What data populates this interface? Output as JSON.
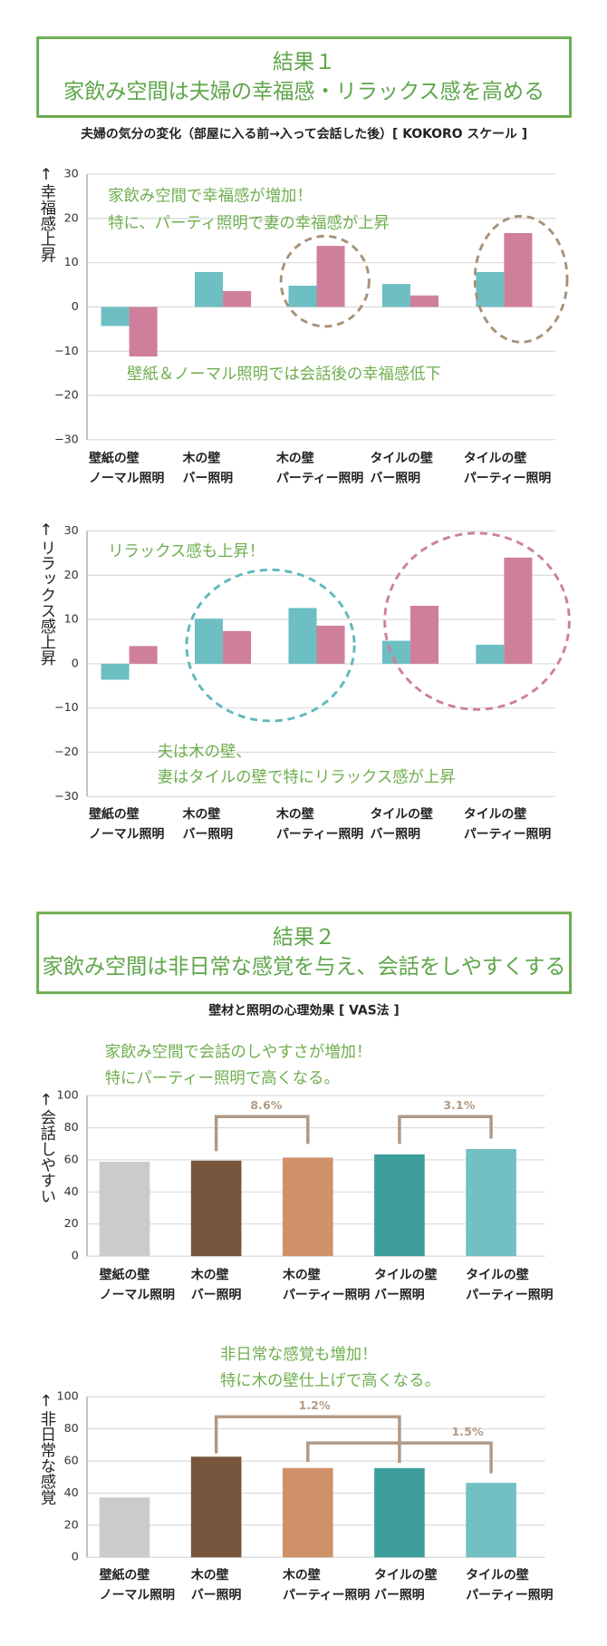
{
  "result1": {
    "title": [
      "結果１",
      "家飲み空間は夫婦の幸福感・リラックス感を高める"
    ],
    "subtitle": "夫婦の気分の変化（部屋に入る前→入って会話した後）[ KOKORO スケール ]"
  },
  "result2": {
    "title": [
      "結果２",
      "家飲み空間は非日常な感覚を与え、会話をしやすくする"
    ],
    "subtitle": "壁材と照明の心理効果 [ VAS法 ]"
  },
  "chart_data": [
    {
      "type": "bar",
      "y_label": "↑幸福感上昇",
      "categories": [
        [
          "壁紙の壁",
          "ノーマル照明"
        ],
        [
          "木の壁",
          "バー照明"
        ],
        [
          "木の壁",
          "パーティー照明"
        ],
        [
          "タイルの壁",
          "バー照明"
        ],
        [
          "タイルの壁",
          "パーティー照明"
        ]
      ],
      "series": [
        {
          "color": "#6dbfc3",
          "values": [
            -4.3,
            7.9,
            4.8,
            5.2,
            7.9
          ]
        },
        {
          "color": "#cf7f9b",
          "values": [
            -11.2,
            3.6,
            13.8,
            2.6,
            16.7
          ]
        }
      ],
      "ylim": [
        -30,
        30
      ],
      "yticks": [
        {
          "value": -30,
          "label": "−30"
        },
        {
          "value": -20,
          "label": "−20"
        },
        {
          "value": -10,
          "label": "−10"
        },
        0,
        10,
        20,
        30
      ],
      "grid": true,
      "annotations": [
        "家飲み空間で幸福感が増加！",
        "特に、パーティ照明で妻の幸福感が上昇",
        "壁紙＆ノーマル照明では会話後の幸福感低下"
      ]
    },
    {
      "type": "bar",
      "y_label": "↑リラックス感上昇",
      "categories": [
        [
          "壁紙の壁",
          "ノーマル照明"
        ],
        [
          "木の壁",
          "バー照明"
        ],
        [
          "木の壁",
          "パーティー照明"
        ],
        [
          "タイルの壁",
          "バー照明"
        ],
        [
          "タイルの壁",
          "パーティー照明"
        ]
      ],
      "series": [
        {
          "color": "#6dbfc3",
          "values": [
            -3.6,
            10.2,
            12.6,
            5.2,
            4.3
          ]
        },
        {
          "color": "#cf7f9b",
          "values": [
            4.0,
            7.4,
            8.6,
            13.1,
            24.0
          ]
        }
      ],
      "ylim": [
        -30,
        30
      ],
      "yticks": [
        {
          "value": -30,
          "label": "−30"
        },
        {
          "value": -20,
          "label": "−20"
        },
        {
          "value": -10,
          "label": "−10"
        },
        0,
        10,
        20,
        30
      ],
      "grid": true,
      "annotations": [
        "リラックス感も上昇！",
        "夫は木の壁、",
        "妻はタイルの壁で特にリラックス感が上昇"
      ]
    },
    {
      "type": "bar",
      "y_label": "↑会話しやすい",
      "categories": [
        [
          "壁紙の壁",
          "ノーマル照明"
        ],
        [
          "木の壁",
          "バー照明"
        ],
        [
          "木の壁",
          "パーティー照明"
        ],
        [
          "タイルの壁",
          "バー照明"
        ],
        [
          "タイルの壁",
          "パーティー照明"
        ]
      ],
      "values": [
        58.8,
        59.5,
        61.4,
        63.4,
        66.7
      ],
      "colors": [
        "#cbcbcd",
        "#77563e",
        "#cf9168",
        "#3e9e9c",
        "#72c0c3"
      ],
      "ylim": [
        0,
        100
      ],
      "yticks": [
        0,
        20,
        40,
        60,
        80,
        100
      ],
      "grid": true,
      "annotations": [
        "家飲み空間で会話のしやすさが増加！",
        "特にパーティー照明で高くなる。"
      ],
      "bracket_labels": [
        "8.6%",
        "3.1%"
      ]
    },
    {
      "type": "bar",
      "y_label": "↑非日常な感覚",
      "categories": [
        [
          "壁紙の壁",
          "ノーマル照明"
        ],
        [
          "木の壁",
          "バー照明"
        ],
        [
          "木の壁",
          "パーティー照明"
        ],
        [
          "タイルの壁",
          "バー照明"
        ],
        [
          "タイルの壁",
          "パーティー照明"
        ]
      ],
      "values": [
        37.3,
        62.7,
        55.6,
        55.6,
        46.4
      ],
      "colors": [
        "#cbcbcd",
        "#77563e",
        "#cf9168",
        "#3e9e9c",
        "#72c0c3"
      ],
      "ylim": [
        0,
        100
      ],
      "yticks": [
        0,
        20,
        40,
        60,
        80,
        100
      ],
      "grid": true,
      "annotations": [
        "非日常な感覚も増加！",
        "特に木の壁仕上げで高くなる。"
      ],
      "bracket_labels": [
        "1.2%",
        "1.5%"
      ]
    }
  ]
}
